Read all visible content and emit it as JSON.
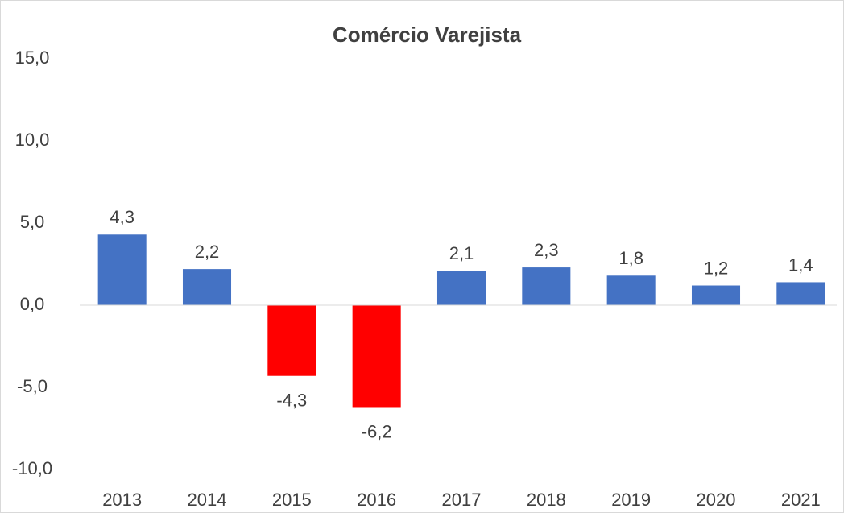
{
  "chart_data": {
    "type": "bar",
    "title": "Comércio Varejista",
    "categories": [
      "2013",
      "2014",
      "2015",
      "2016",
      "2017",
      "2018",
      "2019",
      "2020",
      "2021"
    ],
    "values": [
      4.3,
      2.2,
      -4.3,
      -6.2,
      2.1,
      2.3,
      1.8,
      1.2,
      1.4
    ],
    "value_labels": [
      "4,3",
      "2,2",
      "-4,3",
      "-6,2",
      "2,1",
      "2,3",
      "1,8",
      "1,2",
      "1,4"
    ],
    "colors": [
      "#4472c4",
      "#4472c4",
      "#ff0000",
      "#ff0000",
      "#4472c4",
      "#4472c4",
      "#4472c4",
      "#4472c4",
      "#4472c4"
    ],
    "ylim": [
      -10,
      15
    ],
    "yticks": [
      {
        "value": -10,
        "label": "-10,0"
      },
      {
        "value": -5,
        "label": "-5,0"
      },
      {
        "value": 0,
        "label": "0,0"
      },
      {
        "value": 5,
        "label": "5,0"
      },
      {
        "value": 10,
        "label": "10,0"
      },
      {
        "value": 15,
        "label": "15,0"
      }
    ],
    "grid": false
  }
}
